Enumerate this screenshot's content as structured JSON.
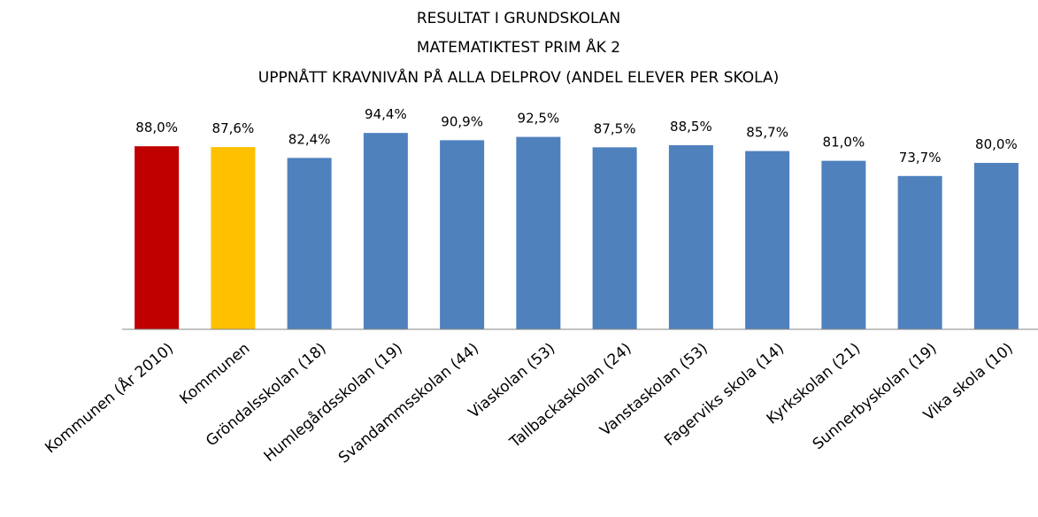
{
  "chart_data": {
    "type": "bar",
    "title": [
      "RESULTAT I GRUNDSKOLAN",
      "MATEMATIKTEST PRIM ÅK 2",
      "UPPNÅTT KRAVNIVÅN PÅ ALLA DELPROV (ANDEL ELEVER PER SKOLA)"
    ],
    "categories": [
      "Kommunen (År 2010)",
      "Kommunen",
      "Gröndalsskolan (18)",
      "Humlegårdsskolan (19)",
      "Svandammsskolan (44)",
      "Viaskolan (53)",
      "Tallbackaskolan (24)",
      "Vanstaskolan (53)",
      "Fagerviks skola (14)",
      "Kyrkskolan (21)",
      "Sunnerbyskolan (19)",
      "Vika skola (10)"
    ],
    "values": [
      88.0,
      87.6,
      82.4,
      94.4,
      90.9,
      92.5,
      87.5,
      88.5,
      85.7,
      81.0,
      73.7,
      80.0
    ],
    "value_labels": [
      "88,0%",
      "87,6%",
      "82,4%",
      "94,4%",
      "90,9%",
      "92,5%",
      "87,5%",
      "88,5%",
      "85,7%",
      "81,0%",
      "73,7%",
      "80,0%"
    ],
    "colors": [
      "#c00000",
      "#ffc000",
      "#4f81bd",
      "#4f81bd",
      "#4f81bd",
      "#4f81bd",
      "#4f81bd",
      "#4f81bd",
      "#4f81bd",
      "#4f81bd",
      "#4f81bd",
      "#4f81bd"
    ],
    "ylim": [
      0,
      100
    ]
  }
}
